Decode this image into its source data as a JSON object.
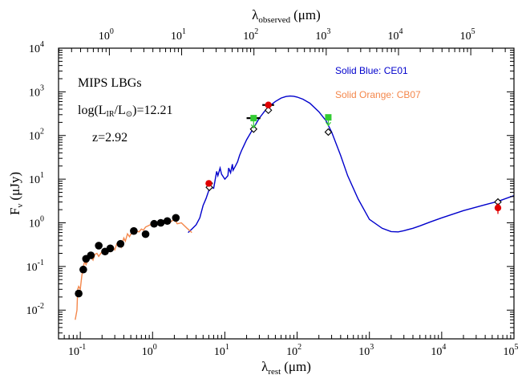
{
  "chart_data": {
    "type": "scatter",
    "x_scale": "log",
    "y_scale": "log",
    "xlim": [
      0.05,
      100000
    ],
    "ylim": [
      0.0022,
      10000
    ],
    "top_xlim": [
      0.198,
      396000
    ],
    "xlabel_prefix": "λ",
    "xlabel_sub": "rest",
    "xlabel_unit": "(μm)",
    "ylabel_prefix": "F",
    "ylabel_sub": "ν",
    "ylabel_unit": "(μJy)",
    "top_xlabel_prefix": "λ",
    "top_xlabel_sub": "observed",
    "top_xlabel_unit": "(μm)",
    "x_ticks": [
      {
        "value": 0.1,
        "base": "10",
        "exp": "-1"
      },
      {
        "value": 1,
        "base": "10",
        "exp": "0"
      },
      {
        "value": 10,
        "base": "10",
        "exp": "1"
      },
      {
        "value": 100,
        "base": "10",
        "exp": "2"
      },
      {
        "value": 1000,
        "base": "10",
        "exp": "3"
      },
      {
        "value": 10000,
        "base": "10",
        "exp": "4"
      },
      {
        "value": 100000,
        "base": "10",
        "exp": "5"
      }
    ],
    "top_x_ticks": [
      {
        "value": 1,
        "base": "10",
        "exp": "0"
      },
      {
        "value": 10,
        "base": "10",
        "exp": "1"
      },
      {
        "value": 100,
        "base": "10",
        "exp": "2"
      },
      {
        "value": 1000,
        "base": "10",
        "exp": "3"
      },
      {
        "value": 10000,
        "base": "10",
        "exp": "4"
      },
      {
        "value": 100000,
        "base": "10",
        "exp": "5"
      }
    ],
    "y_ticks": [
      {
        "value": 0.01,
        "base": "10",
        "exp": "-2"
      },
      {
        "value": 0.1,
        "base": "10",
        "exp": "-1"
      },
      {
        "value": 1,
        "base": "10",
        "exp": "0"
      },
      {
        "value": 10,
        "base": "10",
        "exp": "1"
      },
      {
        "value": 100,
        "base": "10",
        "exp": "2"
      },
      {
        "value": 1000,
        "base": "10",
        "exp": "3"
      },
      {
        "value": 10000,
        "base": "10",
        "exp": "4"
      }
    ],
    "annotations": {
      "title": "MIPS LBGs",
      "lir_prefix": "log(L",
      "lir_sub1": "IR",
      "lir_mid": "/L",
      "lir_sub2": "⊙",
      "lir_suffix": ")=12.21",
      "redshift": "z=2.92"
    },
    "legend": [
      {
        "label": "Solid Blue: CE01",
        "color": "#0000cc"
      },
      {
        "label": "Solid Orange: CB07",
        "color": "#f4874b"
      }
    ],
    "series": [
      {
        "name": "Solid Blue: CE01",
        "kind": "line",
        "color": "#0000cc",
        "x": [
          3.1,
          3.5,
          4,
          4.5,
          5,
          5.5,
          6,
          6.2,
          6.5,
          7,
          7.7,
          8,
          8.6,
          9,
          10,
          11,
          11.3,
          12,
          12.7,
          13,
          14,
          15,
          16,
          17,
          18,
          20,
          25,
          30,
          35,
          40,
          50,
          60,
          70,
          80,
          90,
          100,
          120,
          150,
          200,
          250,
          300,
          400,
          500,
          700,
          1000,
          1500,
          2000,
          2500,
          3000,
          4000,
          5000,
          7000,
          10000,
          20000,
          40000,
          60000,
          100000
        ],
        "y": [
          0.6,
          0.72,
          0.9,
          1.3,
          2.5,
          3.6,
          5.5,
          8,
          6.5,
          6.2,
          15,
          12,
          18,
          13,
          10,
          12,
          18,
          14,
          22,
          16,
          20,
          25,
          35,
          45,
          55,
          80,
          150,
          250,
          350,
          450,
          600,
          720,
          780,
          800,
          790,
          760,
          680,
          550,
          350,
          220,
          120,
          35,
          12,
          3.5,
          1.2,
          0.75,
          0.63,
          0.62,
          0.66,
          0.75,
          0.85,
          1.05,
          1.3,
          1.9,
          2.6,
          3.1,
          4.2
        ]
      },
      {
        "name": "Solid Orange: CB07",
        "kind": "line",
        "color": "#f4874b",
        "x": [
          0.085,
          0.09,
          0.092,
          0.095,
          0.1,
          0.105,
          0.11,
          0.115,
          0.12,
          0.13,
          0.14,
          0.15,
          0.16,
          0.17,
          0.18,
          0.2,
          0.22,
          0.24,
          0.26,
          0.28,
          0.3,
          0.32,
          0.35,
          0.37,
          0.4,
          0.42,
          0.45,
          0.48,
          0.5,
          0.55,
          0.6,
          0.65,
          0.7,
          0.75,
          0.8,
          0.9,
          1.0,
          1.1,
          1.2,
          1.3,
          1.5,
          1.7,
          2.0,
          2.2,
          2.5,
          3.0,
          3.5
        ],
        "y": [
          0.006,
          0.01,
          0.03,
          0.035,
          0.03,
          0.06,
          0.1,
          0.13,
          0.11,
          0.15,
          0.17,
          0.14,
          0.19,
          0.2,
          0.17,
          0.22,
          0.19,
          0.27,
          0.22,
          0.28,
          0.24,
          0.33,
          0.36,
          0.28,
          0.45,
          0.38,
          0.56,
          0.48,
          0.55,
          0.58,
          0.65,
          0.62,
          0.72,
          0.68,
          0.8,
          0.88,
          0.95,
          0.9,
          1.05,
          1.0,
          1.15,
          1.0,
          1.2,
          0.95,
          1.0,
          0.75,
          0.6
        ]
      },
      {
        "name": "",
        "kind": "filled-circle",
        "color": "#000000",
        "x": [
          0.095,
          0.11,
          0.12,
          0.14,
          0.18,
          0.22,
          0.26,
          0.36,
          0.55,
          0.8,
          1.05,
          1.3,
          1.6,
          2.1
        ],
        "y": [
          0.024,
          0.085,
          0.15,
          0.18,
          0.3,
          0.22,
          0.26,
          0.33,
          0.65,
          0.55,
          0.95,
          1.0,
          1.1,
          1.3
        ]
      },
      {
        "name": "",
        "kind": "diamond",
        "color": "#000000",
        "x": [
          6.1,
          25,
          40,
          270,
          60000
        ],
        "y": [
          6.5,
          140,
          380,
          120,
          3.0
        ]
      },
      {
        "name": "",
        "kind": "red-circle",
        "color": "#e00000",
        "x": [
          6.0,
          40,
          60000
        ],
        "y": [
          8.0,
          500,
          2.2
        ],
        "y_lo": [
          6.9,
          420,
          1.6
        ],
        "y_hi": [
          9.2,
          590,
          2.8
        ],
        "x_lo": [
          5.6,
          33,
          60000
        ],
        "x_hi": [
          6.8,
          48,
          60000
        ]
      },
      {
        "name": "",
        "kind": "green-square-upper-limit",
        "color": "#33cc33",
        "x": [
          25,
          270
        ],
        "y": [
          250,
          260
        ],
        "x_lo": [
          20,
          270
        ],
        "x_hi": [
          31,
          270
        ],
        "arrow_to": [
          150,
          170
        ]
      }
    ]
  }
}
